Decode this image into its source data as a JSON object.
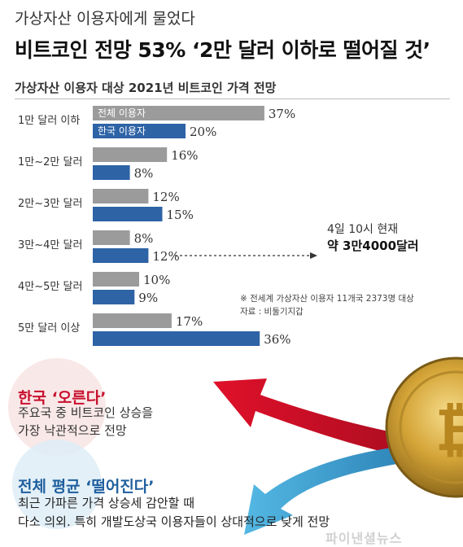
{
  "header": {
    "kicker": "가상자산 이용자에게 물었다",
    "headline": "비트코인 전망 53% ‘2만 달러 이하로 떨어질 것’",
    "chart_subtitle": "가상자산 이용자 대상 2021년 비트코인 가격 전망"
  },
  "chart_data": {
    "type": "bar",
    "orientation": "horizontal",
    "title": "가상자산 이용자 대상 2021년 비트코인 가격 전망",
    "categories": [
      "1만 달러 이하",
      "1만~2만 달러",
      "2만~3만 달러",
      "3만~4만 달러",
      "4만~5만 달러",
      "5만 달러 이상"
    ],
    "series": [
      {
        "name": "전체 이용자",
        "color": "#9b9b9b",
        "values": [
          37,
          16,
          12,
          8,
          10,
          17
        ]
      },
      {
        "name": "한국 이용자",
        "color": "#2e63a6",
        "values": [
          20,
          8,
          15,
          12,
          9,
          36
        ]
      }
    ],
    "value_suffix": "%",
    "xlim": [
      0,
      40
    ],
    "annotation": {
      "line1": "4일 10시 현재",
      "line2": "약 3만4000달러"
    }
  },
  "notes": {
    "survey": "※ 전세계 가상자산 이용자 11개국 2373명 대상",
    "source": "자료 : 비둘기지갑"
  },
  "korea": {
    "title": "한국 ‘오른다’",
    "line1": "주요국 중 비트코인 상승을",
    "line2": "가장 낙관적으로  전망"
  },
  "global": {
    "title": "전체 평균 ‘떨어진다’",
    "line1": "최근 가파른 가격 상승세 감안할 때",
    "line2": "다소 의외. 특히 개발도상국 이용자들이 상대적으로 낮게 전망"
  },
  "colors": {
    "gray_bar": "#9b9b9b",
    "blue_bar": "#2e63a6",
    "red_arrow": "#c8102e",
    "blue_arrow": "#3a9fd0",
    "coin": "#d4a437"
  },
  "watermark": "파이낸셜뉴스"
}
